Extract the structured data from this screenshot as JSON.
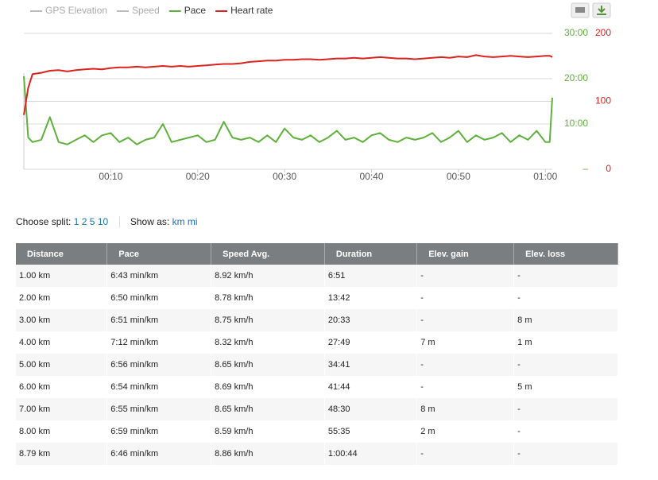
{
  "chart_data": {
    "type": "line",
    "legend_inactive": [
      "GPS Elevation",
      "Speed"
    ],
    "x": [
      0,
      0.5,
      1,
      2,
      3,
      4,
      5,
      6,
      7,
      8,
      9,
      10,
      11,
      12,
      13,
      14,
      15,
      16,
      17,
      18,
      19,
      20,
      21,
      22,
      23,
      24,
      25,
      26,
      27,
      28,
      29,
      30,
      31,
      32,
      33,
      34,
      35,
      36,
      37,
      38,
      39,
      40,
      41,
      42,
      43,
      44,
      45,
      46,
      47,
      48,
      49,
      50,
      51,
      52,
      53,
      54,
      55,
      56,
      57,
      58,
      59,
      60,
      60.5,
      60.8
    ],
    "xlim": [
      0,
      60.8
    ],
    "xticks": [
      {
        "value": 10,
        "label": "00:10"
      },
      {
        "value": 20,
        "label": "00:20"
      },
      {
        "value": 30,
        "label": "00:30"
      },
      {
        "value": 40,
        "label": "00:40"
      },
      {
        "value": 50,
        "label": "00:50"
      },
      {
        "value": 60,
        "label": "01:00"
      }
    ],
    "ylim": [
      0,
      30
    ],
    "yticks": [
      {
        "value": 0,
        "label": "–"
      },
      {
        "value": 10,
        "label": "10:00"
      },
      {
        "value": 20,
        "label": "20:00"
      },
      {
        "value": 30,
        "label": "30:00"
      }
    ],
    "y2lim": [
      0,
      200
    ],
    "y2ticks": [
      0,
      100,
      200
    ],
    "grid": true,
    "series": [
      {
        "name": "Pace",
        "color": "#5fb13c",
        "axis": "y",
        "values": [
          20.5,
          7,
          6,
          6.5,
          11.5,
          6,
          5.5,
          6.5,
          7.5,
          6,
          7.5,
          8,
          6,
          7,
          5.5,
          6.5,
          7,
          10,
          6,
          6.5,
          7,
          7.5,
          6,
          6.5,
          10.5,
          7,
          6.5,
          7,
          6,
          7.5,
          6,
          9,
          7,
          6.5,
          7.5,
          6,
          7,
          8.5,
          6.5,
          7,
          6,
          7.5,
          8,
          6.5,
          6,
          7,
          6.5,
          7,
          8,
          6,
          7,
          8.5,
          6,
          7.5,
          6.5,
          7,
          8,
          6,
          7.5,
          6.5,
          8.5,
          6,
          6,
          15.8
        ]
      },
      {
        "name": "Heart rate",
        "color": "#d9231f",
        "axis": "y2",
        "values": [
          80,
          120,
          140,
          142,
          145,
          146,
          144,
          146,
          147,
          148,
          147,
          149,
          150,
          150,
          151,
          150,
          151,
          152,
          151,
          152,
          151,
          152,
          153,
          154,
          155,
          155,
          156,
          158,
          159,
          160,
          160,
          161,
          161,
          162,
          162,
          161,
          162,
          163,
          163,
          164,
          163,
          164,
          165,
          164,
          163,
          163,
          162,
          163,
          164,
          165,
          164,
          166,
          165,
          168,
          166,
          165,
          166,
          167,
          166,
          165,
          166,
          167,
          167,
          165
        ]
      }
    ]
  },
  "controls": {
    "split_label": "Choose split:",
    "splits": [
      "1",
      "2",
      "5",
      "10"
    ],
    "show_label": "Show as:",
    "units": [
      "km",
      "mi"
    ]
  },
  "table": {
    "headers": [
      "Distance",
      "Pace",
      "Speed Avg.",
      "Duration",
      "Elev. gain",
      "Elev. loss"
    ],
    "rows": [
      [
        "1.00 km",
        "6:43 min/km",
        "8.92 km/h",
        "6:51",
        "-",
        "-"
      ],
      [
        "2.00 km",
        "6:50 min/km",
        "8.78 km/h",
        "13:42",
        "-",
        "-"
      ],
      [
        "3.00 km",
        "6:51 min/km",
        "8.75 km/h",
        "20:33",
        "-",
        "8 m"
      ],
      [
        "4.00 km",
        "7:12 min/km",
        "8.32 km/h",
        "27:49",
        "7 m",
        "1 m"
      ],
      [
        "5.00 km",
        "6:56 min/km",
        "8.65 km/h",
        "34:41",
        "-",
        "-"
      ],
      [
        "6.00 km",
        "6:54 min/km",
        "8.69 km/h",
        "41:44",
        "-",
        "5 m"
      ],
      [
        "7.00 km",
        "6:55 min/km",
        "8.65 km/h",
        "48:30",
        "8 m",
        "-"
      ],
      [
        "8.00 km",
        "6:59 min/km",
        "8.59 km/h",
        "55:35",
        "2 m",
        "-"
      ],
      [
        "8.79 km",
        "6:46 min/km",
        "8.86 km/h",
        "1:00:44",
        "-",
        "-"
      ]
    ]
  }
}
